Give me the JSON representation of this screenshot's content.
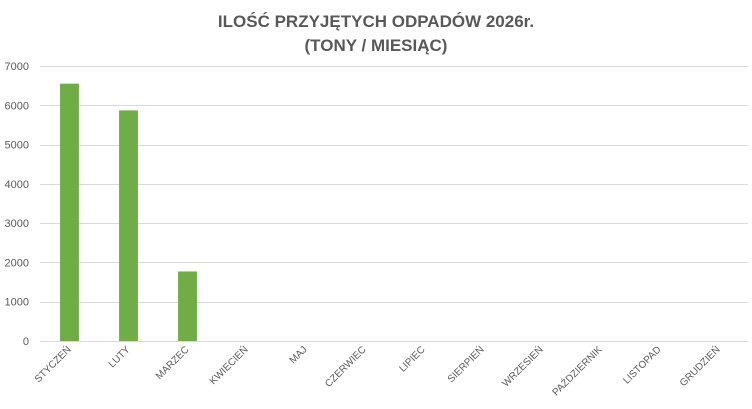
{
  "chart_data": {
    "type": "bar",
    "title_line_1": "ILOŚĆ PRZYJĘTYCH ODPADÓW 2026r.",
    "title_line_2": "(TONY / MIESIĄC)",
    "categories": [
      "STYCZEŃ",
      "LUTY",
      "MARZEC",
      "KWIECIEŃ",
      "MAJ",
      "CZERWIEC",
      "LIPIEC",
      "SIERPIEŃ",
      "WRZESIEŃ",
      "PAŹDZIERNIK",
      "LISTOPAD",
      "GRUDZIEŃ"
    ],
    "values": [
      6550,
      5870,
      1770,
      null,
      null,
      null,
      null,
      null,
      null,
      null,
      null,
      null
    ],
    "ylim": [
      0,
      7000
    ],
    "yticks": [
      0,
      1000,
      2000,
      3000,
      4000,
      5000,
      6000,
      7000
    ],
    "xlabel": "",
    "ylabel": "",
    "grid": true,
    "legend": "none",
    "bar_color": "#70ad47",
    "grid_color": "#d9d9d9",
    "text_color": "#595959"
  }
}
